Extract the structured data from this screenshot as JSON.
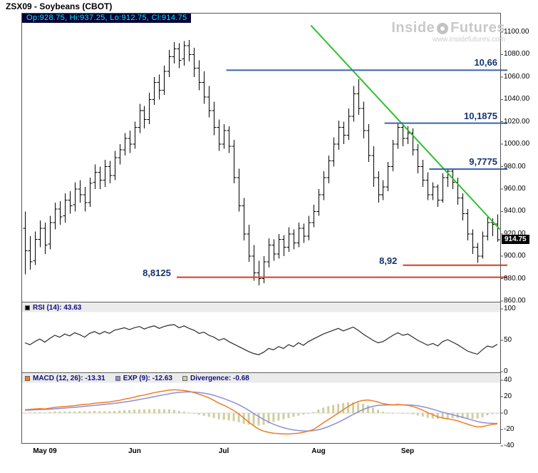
{
  "title": "ZSX09 - Soybeans (CBOT)",
  "main_header": "Op:928.75, Hi:937.25, Lo:912.75, Cl:914.75",
  "watermark": {
    "word1": "Inside",
    "word2": "Futures",
    "url": "www.insidefutures.com"
  },
  "price_tag": "914.75",
  "x_axis_labels": [
    "May 09",
    "Jun",
    "Jul",
    "Aug",
    "Sep"
  ],
  "chart_data": [
    {
      "type": "ohlc-bar",
      "symbol": "ZSX09",
      "name": "Soybeans (CBOT)",
      "last": {
        "open": 928.75,
        "high": 937.25,
        "low": 912.75,
        "close": 914.75
      },
      "ylim": [
        858,
        1118
      ],
      "grid": "off",
      "y_ticks": [
        "1100.00",
        "1080.00",
        "1060.00",
        "1040.00",
        "1020.00",
        "1000.00",
        "980.00",
        "960.00",
        "940.00",
        "920.00",
        "900.00",
        "880.00",
        "860.00"
      ],
      "x_ticks": [
        {
          "index": 4,
          "label": "May 09"
        },
        {
          "index": 22,
          "label": "Jun"
        },
        {
          "index": 40,
          "label": "Jul"
        },
        {
          "index": 59,
          "label": "Aug"
        },
        {
          "index": 77,
          "label": "Sep"
        }
      ],
      "bars": [
        [
          925,
          940,
          884,
          905
        ],
        [
          905,
          918,
          888,
          895
        ],
        [
          896,
          922,
          892,
          915
        ],
        [
          915,
          932,
          908,
          925
        ],
        [
          925,
          930,
          902,
          910
        ],
        [
          911,
          936,
          906,
          930
        ],
        [
          930,
          948,
          924,
          942
        ],
        [
          942,
          949,
          928,
          935
        ],
        [
          936,
          956,
          930,
          950
        ],
        [
          950,
          958,
          938,
          945
        ],
        [
          946,
          966,
          940,
          960
        ],
        [
          960,
          968,
          948,
          955
        ],
        [
          955,
          962,
          940,
          948
        ],
        [
          948,
          970,
          944,
          965
        ],
        [
          966,
          982,
          960,
          975
        ],
        [
          975,
          980,
          960,
          968
        ],
        [
          968,
          986,
          962,
          980
        ],
        [
          980,
          985,
          965,
          972
        ],
        [
          972,
          994,
          968,
          988
        ],
        [
          988,
          1000,
          982,
          995
        ],
        [
          995,
          1010,
          990,
          1005
        ],
        [
          1005,
          1012,
          992,
          1000
        ],
        [
          1000,
          1020,
          996,
          1015
        ],
        [
          1015,
          1036,
          1010,
          1030
        ],
        [
          1030,
          1034,
          1014,
          1022
        ],
        [
          1022,
          1046,
          1018,
          1040
        ],
        [
          1040,
          1060,
          1035,
          1055
        ],
        [
          1055,
          1062,
          1040,
          1048
        ],
        [
          1048,
          1070,
          1044,
          1065
        ],
        [
          1065,
          1084,
          1060,
          1078
        ],
        [
          1078,
          1091,
          1072,
          1085
        ],
        [
          1085,
          1090,
          1068,
          1075
        ],
        [
          1076,
          1092,
          1070,
          1088
        ],
        [
          1088,
          1093,
          1074,
          1080
        ],
        [
          1080,
          1086,
          1060,
          1068
        ],
        [
          1068,
          1075,
          1048,
          1055
        ],
        [
          1055,
          1065,
          1036,
          1042
        ],
        [
          1042,
          1052,
          1024,
          1030
        ],
        [
          1030,
          1038,
          1008,
          1015
        ],
        [
          1015,
          1022,
          994,
          1000
        ],
        [
          1000,
          1018,
          996,
          1012
        ],
        [
          1012,
          1016,
          992,
          998
        ],
        [
          998,
          1004,
          965,
          970
        ],
        [
          970,
          978,
          940,
          945
        ],
        [
          945,
          952,
          914,
          920
        ],
        [
          920,
          928,
          895,
          900
        ],
        [
          900,
          910,
          878,
          885
        ],
        [
          885,
          896,
          874,
          880
        ],
        [
          880,
          900,
          876,
          895
        ],
        [
          895,
          916,
          890,
          910
        ],
        [
          910,
          915,
          896,
          902
        ],
        [
          902,
          920,
          898,
          915
        ],
        [
          915,
          919,
          900,
          908
        ],
        [
          908,
          926,
          904,
          920
        ],
        [
          920,
          924,
          906,
          912
        ],
        [
          912,
          930,
          908,
          925
        ],
        [
          925,
          929,
          912,
          918
        ],
        [
          918,
          936,
          914,
          930
        ],
        [
          930,
          946,
          926,
          940
        ],
        [
          940,
          960,
          936,
          955
        ],
        [
          955,
          976,
          950,
          970
        ],
        [
          970,
          990,
          965,
          985
        ],
        [
          985,
          1006,
          980,
          1000
        ],
        [
          1000,
          1021,
          995,
          1015
        ],
        [
          1015,
          1020,
          1000,
          1008
        ],
        [
          1008,
          1032,
          1004,
          1025
        ],
        [
          1025,
          1052,
          1020,
          1045
        ],
        [
          1045,
          1058,
          1026,
          1032
        ],
        [
          1032,
          1038,
          1005,
          1012
        ],
        [
          1012,
          1018,
          984,
          990
        ],
        [
          990,
          998,
          962,
          970
        ],
        [
          970,
          976,
          948,
          955
        ],
        [
          955,
          968,
          950,
          962
        ],
        [
          962,
          984,
          958,
          980
        ],
        [
          980,
          1004,
          976,
          1000
        ],
        [
          1000,
          1019,
          996,
          1015
        ],
        [
          1015,
          1018,
          998,
          1005
        ],
        [
          1005,
          1016,
          1000,
          1010
        ],
        [
          1010,
          1014,
          990,
          995
        ],
        [
          995,
          1000,
          974,
          980
        ],
        [
          980,
          986,
          962,
          968
        ],
        [
          968,
          975,
          950,
          955
        ],
        [
          955,
          966,
          950,
          962
        ],
        [
          962,
          964,
          944,
          950
        ],
        [
          950,
          974,
          948,
          970
        ],
        [
          970,
          978,
          962,
          976
        ],
        [
          976,
          977,
          960,
          966
        ],
        [
          966,
          970,
          946,
          952
        ],
        [
          952,
          956,
          932,
          938
        ],
        [
          938,
          942,
          914,
          920
        ],
        [
          920,
          924,
          902,
          908
        ],
        [
          908,
          912,
          894,
          900
        ],
        [
          900,
          922,
          898,
          918
        ],
        [
          918,
          936,
          914,
          930
        ],
        [
          930,
          934,
          918,
          928.5
        ],
        [
          928.75,
          937.25,
          912.75,
          914.75
        ]
      ],
      "trendline": {
        "from_index": 57.5,
        "from_price": 1106,
        "to_index": 95.5,
        "to_price": 924,
        "color": "#2fc12f"
      },
      "hlines": [
        {
          "label": "10,66",
          "price": 1066,
          "from_index": 40.5,
          "color": "#3c64ae",
          "label_pos": "above-right"
        },
        {
          "label": "10,1875",
          "price": 1018.75,
          "from_index": 72.3,
          "color": "#3c64ae",
          "label_pos": "above-right"
        },
        {
          "label": "9,7775",
          "price": 977.75,
          "from_index": 81.3,
          "color": "#3c64ae",
          "label_pos": "above-right"
        },
        {
          "label": "8,92",
          "price": 892,
          "from_index": 76,
          "color": "#e2391b",
          "label_pos": "left"
        },
        {
          "label": "8,8125",
          "price": 881.25,
          "from_index": 30.5,
          "color": "#e2391b",
          "label_pos": "left"
        }
      ]
    },
    {
      "type": "line",
      "name": "RSI",
      "label": "RSI (14): 43.63",
      "period": 14,
      "current": 43.63,
      "color": "#2b2b2b",
      "swatch": "#000000",
      "ylim": [
        0,
        100
      ],
      "y_ticks": [
        "100",
        "50",
        "0"
      ],
      "values": [
        46,
        43,
        48,
        52,
        47,
        53,
        58,
        55,
        60,
        57,
        62,
        59,
        55,
        61,
        64,
        60,
        64,
        61,
        66,
        68,
        70,
        67,
        70,
        72,
        68,
        71,
        73,
        69,
        72,
        74,
        75,
        70,
        73,
        69,
        66,
        61,
        63,
        58,
        55,
        50,
        53,
        48,
        44,
        40,
        36,
        32,
        29,
        27,
        31,
        37,
        35,
        40,
        37,
        43,
        40,
        46,
        42,
        48,
        52,
        56,
        60,
        63,
        66,
        69,
        65,
        68,
        71,
        66,
        60,
        55,
        50,
        46,
        48,
        53,
        58,
        62,
        58,
        60,
        55,
        50,
        46,
        42,
        45,
        41,
        48,
        51,
        47,
        43,
        38,
        33,
        30,
        28,
        35,
        41,
        39,
        43.63
      ]
    },
    {
      "type": "macd",
      "labels": {
        "macd": "MACD (12, 26): -13.31",
        "exp": "EXP (9): -12.63",
        "divergence": "Divergence: -0.68"
      },
      "current": {
        "macd": -13.31,
        "exp": -12.63,
        "divergence": -0.68
      },
      "colors": {
        "macd": "#ef7d23",
        "exp": "#8d8ddc",
        "divergence": "#cfcf9e"
      },
      "ylim": [
        -43,
        43
      ],
      "y_ticks": [
        "40",
        "20",
        "0",
        "-20",
        "-40"
      ],
      "macd": [
        4,
        4.5,
        5,
        5.5,
        5,
        6,
        7,
        7.5,
        8,
        8.5,
        9,
        10,
        10.5,
        11,
        12,
        12.5,
        13,
        13.5,
        14.5,
        15.5,
        17,
        18,
        19.5,
        21,
        22,
        23.5,
        25,
        26,
        27,
        28,
        28.5,
        28,
        27.5,
        26.5,
        25,
        23,
        21,
        18.5,
        15.5,
        12,
        9.5,
        6.5,
        3,
        -1,
        -6,
        -11,
        -15.5,
        -19.5,
        -22,
        -23.5,
        -24.5,
        -25,
        -25.5,
        -25.5,
        -25,
        -24.5,
        -23.5,
        -22,
        -20,
        -16,
        -12,
        -8,
        -4,
        0,
        4,
        8,
        11.5,
        14,
        15.5,
        16,
        15,
        13.5,
        11.5,
        10.5,
        10,
        10.5,
        10,
        9.5,
        8,
        6,
        3.5,
        0.5,
        -2,
        -4.5,
        -6,
        -7,
        -8,
        -9.5,
        -11.5,
        -13.5,
        -15.5,
        -17,
        -16.5,
        -15,
        -13.8,
        -13.31
      ],
      "exp": [
        3.5,
        3.7,
        3.96,
        4.27,
        4.42,
        4.73,
        5.19,
        5.65,
        6.12,
        6.6,
        7.08,
        7.66,
        8.23,
        8.78,
        9.43,
        10.04,
        10.63,
        11.21,
        11.86,
        12.59,
        13.47,
        14.38,
        15.4,
        16.52,
        17.62,
        18.79,
        20.03,
        21.23,
        22.38,
        23.5,
        24.5,
        25.2,
        25.66,
        25.83,
        25.66,
        25.13,
        24.3,
        23.14,
        21.61,
        19.69,
        17.65,
        15.42,
        12.94,
        10.15,
        6.92,
        3.34,
        -0.43,
        -4.24,
        -7.79,
        -10.93,
        -13.64,
        -15.91,
        -17.83,
        -19.36,
        -20.49,
        -21.29,
        -21.73,
        -21.79,
        -21.43,
        -20.34,
        -18.68,
        -16.54,
        -14.03,
        -11.22,
        -8.18,
        -4.94,
        -1.65,
        1.48,
        4.28,
        6.63,
        8.3,
        9.34,
        9.77,
        9.92,
        9.94,
        10.05,
        10.04,
        9.93,
        9.54,
        8.83,
        7.76,
        6.31,
        4.65,
        2.82,
        1.06,
        -0.55,
        -2.04,
        -3.53,
        -5.12,
        -6.8,
        -8.54,
        -10.23,
        -11.48,
        -12.18,
        -12.5,
        -12.63
      ]
    }
  ]
}
